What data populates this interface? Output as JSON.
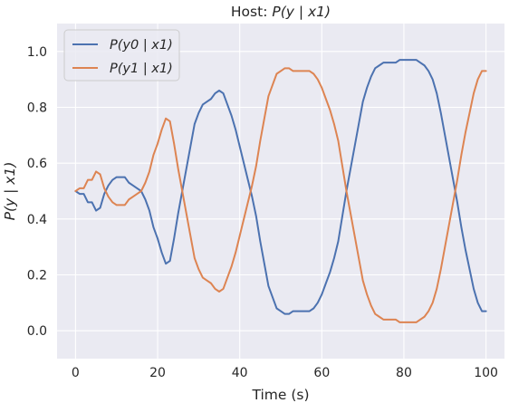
{
  "chart_data": {
    "type": "line",
    "title_prefix": "Host: ",
    "title_math": "P(y | x1)",
    "xlabel": "Time (s)",
    "ylabel": "P(y | x1)",
    "xlim": [
      -4.5,
      104.5
    ],
    "ylim": [
      -0.1,
      1.1
    ],
    "xticks": [
      0,
      20,
      40,
      60,
      80,
      100
    ],
    "yticks": [
      0.0,
      0.2,
      0.4,
      0.6,
      0.8,
      1.0
    ],
    "xtick_labels": [
      "0",
      "20",
      "40",
      "60",
      "80",
      "100"
    ],
    "ytick_labels": [
      "0.0",
      "0.2",
      "0.4",
      "0.6",
      "0.8",
      "1.0"
    ],
    "grid": true,
    "legend_position": "upper-left",
    "background_color": "#eaeaf2",
    "series": [
      {
        "name": "P(y0 | x1)",
        "color": "#4c72b0",
        "x": [
          0,
          1,
          2,
          3,
          4,
          5,
          6,
          7,
          8,
          9,
          10,
          11,
          12,
          13,
          14,
          15,
          16,
          17,
          18,
          19,
          20,
          21,
          22,
          23,
          24,
          25,
          26,
          27,
          28,
          29,
          30,
          31,
          32,
          33,
          34,
          35,
          36,
          37,
          38,
          39,
          40,
          41,
          42,
          43,
          44,
          45,
          46,
          47,
          48,
          49,
          50,
          51,
          52,
          53,
          54,
          55,
          56,
          57,
          58,
          59,
          60,
          61,
          62,
          63,
          64,
          65,
          66,
          67,
          68,
          69,
          70,
          71,
          72,
          73,
          74,
          75,
          76,
          77,
          78,
          79,
          80,
          81,
          82,
          83,
          84,
          85,
          86,
          87,
          88,
          89,
          90,
          91,
          92,
          93,
          94,
          95,
          96,
          97,
          98,
          99,
          100
        ],
        "values": [
          0.5,
          0.49,
          0.49,
          0.46,
          0.46,
          0.43,
          0.44,
          0.49,
          0.52,
          0.54,
          0.55,
          0.55,
          0.55,
          0.53,
          0.52,
          0.51,
          0.5,
          0.47,
          0.43,
          0.37,
          0.33,
          0.28,
          0.24,
          0.25,
          0.33,
          0.42,
          0.5,
          0.58,
          0.66,
          0.74,
          0.78,
          0.81,
          0.82,
          0.83,
          0.85,
          0.86,
          0.85,
          0.81,
          0.77,
          0.72,
          0.66,
          0.6,
          0.54,
          0.48,
          0.41,
          0.32,
          0.24,
          0.16,
          0.12,
          0.08,
          0.07,
          0.06,
          0.06,
          0.07,
          0.07,
          0.07,
          0.07,
          0.07,
          0.08,
          0.1,
          0.13,
          0.17,
          0.21,
          0.26,
          0.32,
          0.41,
          0.5,
          0.58,
          0.66,
          0.74,
          0.82,
          0.87,
          0.91,
          0.94,
          0.95,
          0.96,
          0.96,
          0.96,
          0.96,
          0.97,
          0.97,
          0.97,
          0.97,
          0.97,
          0.96,
          0.95,
          0.93,
          0.9,
          0.85,
          0.78,
          0.7,
          0.62,
          0.54,
          0.46,
          0.37,
          0.29,
          0.22,
          0.15,
          0.1,
          0.07,
          0.07
        ]
      },
      {
        "name": "P(y1 | x1)",
        "color": "#dd8452",
        "x": [
          0,
          1,
          2,
          3,
          4,
          5,
          6,
          7,
          8,
          9,
          10,
          11,
          12,
          13,
          14,
          15,
          16,
          17,
          18,
          19,
          20,
          21,
          22,
          23,
          24,
          25,
          26,
          27,
          28,
          29,
          30,
          31,
          32,
          33,
          34,
          35,
          36,
          37,
          38,
          39,
          40,
          41,
          42,
          43,
          44,
          45,
          46,
          47,
          48,
          49,
          50,
          51,
          52,
          53,
          54,
          55,
          56,
          57,
          58,
          59,
          60,
          61,
          62,
          63,
          64,
          65,
          66,
          67,
          68,
          69,
          70,
          71,
          72,
          73,
          74,
          75,
          76,
          77,
          78,
          79,
          80,
          81,
          82,
          83,
          84,
          85,
          86,
          87,
          88,
          89,
          90,
          91,
          92,
          93,
          94,
          95,
          96,
          97,
          98,
          99,
          100
        ],
        "values": [
          0.5,
          0.51,
          0.51,
          0.54,
          0.54,
          0.57,
          0.56,
          0.51,
          0.48,
          0.46,
          0.45,
          0.45,
          0.45,
          0.47,
          0.48,
          0.49,
          0.5,
          0.53,
          0.57,
          0.63,
          0.67,
          0.72,
          0.76,
          0.75,
          0.67,
          0.58,
          0.5,
          0.42,
          0.34,
          0.26,
          0.22,
          0.19,
          0.18,
          0.17,
          0.15,
          0.14,
          0.15,
          0.19,
          0.23,
          0.28,
          0.34,
          0.4,
          0.46,
          0.52,
          0.59,
          0.68,
          0.76,
          0.84,
          0.88,
          0.92,
          0.93,
          0.94,
          0.94,
          0.93,
          0.93,
          0.93,
          0.93,
          0.93,
          0.92,
          0.9,
          0.87,
          0.83,
          0.79,
          0.74,
          0.68,
          0.59,
          0.5,
          0.42,
          0.34,
          0.26,
          0.18,
          0.13,
          0.09,
          0.06,
          0.05,
          0.04,
          0.04,
          0.04,
          0.04,
          0.03,
          0.03,
          0.03,
          0.03,
          0.03,
          0.04,
          0.05,
          0.07,
          0.1,
          0.15,
          0.22,
          0.3,
          0.38,
          0.46,
          0.54,
          0.63,
          0.71,
          0.78,
          0.85,
          0.9,
          0.93,
          0.93
        ]
      }
    ]
  }
}
